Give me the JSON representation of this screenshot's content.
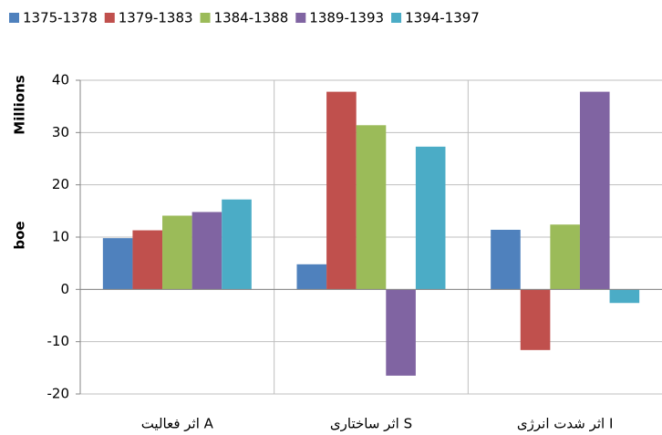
{
  "chart_data": {
    "type": "bar",
    "y_label": "boe",
    "y_unit_label": "Millions",
    "categories": [
      "اثر فعالیت A",
      "اثر ساختاری S",
      "اثر شدت انرژی I"
    ],
    "series": [
      {
        "name": "1375-1378",
        "color": "#4f81bd",
        "values": [
          9.8,
          4.8,
          11.4
        ]
      },
      {
        "name": "1379-1383",
        "color": "#c0504d",
        "values": [
          11.3,
          37.8,
          -11.6
        ]
      },
      {
        "name": "1384-1388",
        "color": "#9bbb59",
        "values": [
          14.1,
          31.4,
          12.4
        ]
      },
      {
        "name": "1389-1393",
        "color": "#8064a2",
        "values": [
          14.8,
          -16.5,
          37.8
        ]
      },
      {
        "name": "1394-1397",
        "color": "#4bacc6",
        "values": [
          17.2,
          27.3,
          -2.6
        ]
      }
    ],
    "ylim": [
      -20,
      40
    ],
    "yticks": [
      -20,
      -10,
      0,
      10,
      20,
      30,
      40
    ],
    "grid": true,
    "legend": "top"
  }
}
